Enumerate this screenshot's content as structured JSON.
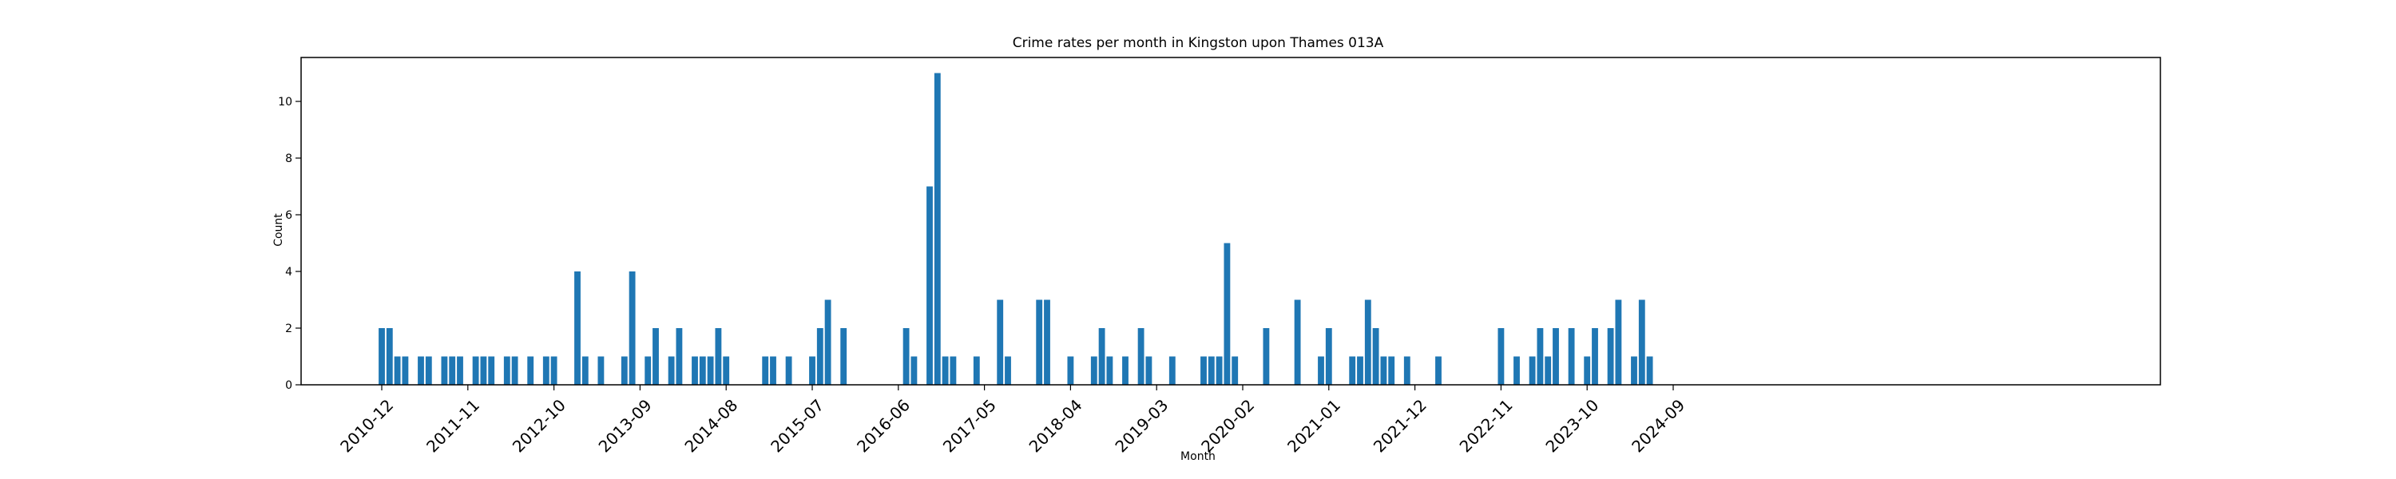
{
  "chart_data": {
    "type": "bar",
    "title": "Crime rates per month in Kingston upon Thames 013A",
    "xlabel": "Month",
    "ylabel": "Count",
    "ylim": [
      0,
      11.55
    ],
    "yticks": [
      0,
      2,
      4,
      6,
      8,
      10
    ],
    "xtick_labels": [
      "2010-12",
      "2011-11",
      "2012-10",
      "2013-09",
      "2014-08",
      "2015-07",
      "2016-06",
      "2017-05",
      "2018-04",
      "2019-03",
      "2020-02",
      "2021-01",
      "2021-12",
      "2022-11",
      "2023-10",
      "2024-09"
    ],
    "x": [
      "2010-12",
      "2011-01",
      "2011-02",
      "2011-03",
      "2011-05",
      "2011-06",
      "2011-08",
      "2011-09",
      "2011-10",
      "2011-12",
      "2012-01",
      "2012-02",
      "2012-04",
      "2012-05",
      "2012-07",
      "2012-09",
      "2012-10",
      "2013-01",
      "2013-02",
      "2013-04",
      "2013-07",
      "2013-08",
      "2013-10",
      "2013-11",
      "2014-01",
      "2014-02",
      "2014-04",
      "2014-05",
      "2014-06",
      "2014-07",
      "2014-08",
      "2015-01",
      "2015-02",
      "2015-04",
      "2015-07",
      "2015-08",
      "2015-09",
      "2015-11",
      "2016-07",
      "2016-08",
      "2016-10",
      "2016-11",
      "2016-12",
      "2017-01",
      "2017-04",
      "2017-07",
      "2017-08",
      "2017-12",
      "2018-01",
      "2018-04",
      "2018-07",
      "2018-08",
      "2018-09",
      "2018-11",
      "2019-01",
      "2019-02",
      "2019-05",
      "2019-09",
      "2019-10",
      "2019-11",
      "2019-12",
      "2020-01",
      "2020-05",
      "2020-09",
      "2020-12",
      "2021-01",
      "2021-04",
      "2021-05",
      "2021-06",
      "2021-07",
      "2021-08",
      "2021-09",
      "2021-11",
      "2022-03",
      "2022-11",
      "2023-01",
      "2023-03",
      "2023-04",
      "2023-05",
      "2023-06",
      "2023-08",
      "2023-10",
      "2023-11",
      "2024-01",
      "2024-02",
      "2024-04",
      "2024-05",
      "2024-06"
    ],
    "values": [
      2,
      2,
      1,
      1,
      1,
      1,
      1,
      1,
      1,
      1,
      1,
      1,
      1,
      1,
      1,
      1,
      1,
      4,
      1,
      1,
      1,
      4,
      1,
      2,
      1,
      2,
      1,
      1,
      1,
      2,
      1,
      1,
      1,
      1,
      1,
      2,
      3,
      2,
      2,
      1,
      7,
      11,
      1,
      1,
      1,
      3,
      1,
      3,
      3,
      1,
      1,
      2,
      1,
      1,
      2,
      1,
      1,
      1,
      1,
      1,
      5,
      1,
      2,
      3,
      1,
      2,
      1,
      1,
      3,
      2,
      1,
      1,
      1,
      1,
      2,
      1,
      1,
      2,
      1,
      2,
      2,
      1,
      2,
      2,
      3,
      1,
      3,
      1
    ],
    "color": "#1f77b4",
    "grid": false,
    "legend": false
  }
}
